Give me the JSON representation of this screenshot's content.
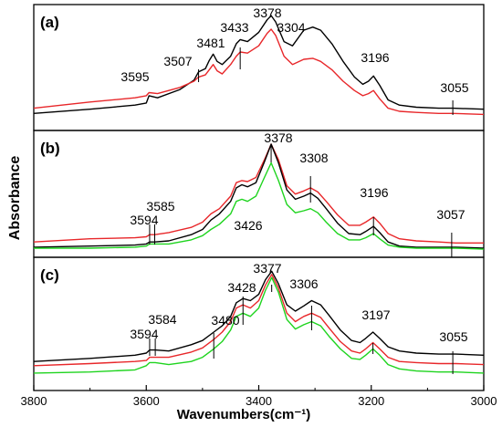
{
  "chart_data": {
    "type": "line",
    "xlabel": "Wavenumbers(cm⁻¹)",
    "ylabel": "Absorbance",
    "xlim": [
      3800,
      3000
    ],
    "x_reversed": true,
    "x_ticks": [
      3800,
      3600,
      3400,
      3200,
      3000
    ],
    "grid": false,
    "legend": "none",
    "panels": [
      {
        "label": "(a)",
        "annotations": [
          {
            "text": "3595",
            "x": 3595,
            "has_line": false
          },
          {
            "text": "3507",
            "x": 3507,
            "has_line": true
          },
          {
            "text": "3481",
            "x": 3481,
            "has_line": false
          },
          {
            "text": "3433",
            "x": 3433,
            "has_line": true
          },
          {
            "text": "3378",
            "x": 3378,
            "has_line": false
          },
          {
            "text": "3304",
            "x": 3304,
            "has_line": false
          },
          {
            "text": "3196",
            "x": 3196,
            "has_line": false
          },
          {
            "text": "3055",
            "x": 3055,
            "has_line": true
          }
        ],
        "series": [
          {
            "color": "#000000",
            "x": [
              3800,
              3700,
              3620,
              3600,
              3595,
              3580,
              3540,
              3515,
              3507,
              3495,
              3488,
              3481,
              3474,
              3465,
              3450,
              3440,
              3433,
              3420,
              3400,
              3385,
              3378,
              3370,
              3355,
              3340,
              3320,
              3304,
              3290,
              3270,
              3250,
              3230,
              3215,
              3205,
              3196,
              3185,
              3170,
              3150,
              3120,
              3080,
              3055,
              3000
            ],
            "y": [
              0.05,
              0.09,
              0.13,
              0.15,
              0.22,
              0.2,
              0.28,
              0.37,
              0.45,
              0.48,
              0.56,
              0.62,
              0.55,
              0.52,
              0.6,
              0.72,
              0.76,
              0.74,
              0.83,
              0.95,
              0.99,
              0.93,
              0.74,
              0.7,
              0.85,
              0.88,
              0.85,
              0.72,
              0.55,
              0.4,
              0.33,
              0.36,
              0.41,
              0.32,
              0.18,
              0.13,
              0.11,
              0.1,
              0.1,
              0.09
            ]
          },
          {
            "color": "#e8272a",
            "x": [
              3800,
              3700,
              3620,
              3600,
              3595,
              3580,
              3540,
              3515,
              3507,
              3495,
              3488,
              3481,
              3474,
              3465,
              3450,
              3440,
              3433,
              3420,
              3400,
              3385,
              3378,
              3370,
              3355,
              3340,
              3320,
              3304,
              3290,
              3270,
              3250,
              3230,
              3215,
              3205,
              3196,
              3185,
              3170,
              3150,
              3120,
              3080,
              3055,
              3000
            ],
            "y": [
              0.1,
              0.16,
              0.2,
              0.22,
              0.25,
              0.24,
              0.3,
              0.36,
              0.4,
              0.42,
              0.47,
              0.52,
              0.46,
              0.43,
              0.52,
              0.6,
              0.64,
              0.63,
              0.7,
              0.82,
              0.86,
              0.8,
              0.6,
              0.52,
              0.57,
              0.58,
              0.55,
              0.47,
              0.36,
              0.27,
              0.22,
              0.24,
              0.27,
              0.19,
              0.1,
              0.07,
              0.06,
              0.05,
              0.05,
              0.04
            ]
          }
        ]
      },
      {
        "label": "(b)",
        "annotations": [
          {
            "text": "3594",
            "x": 3594,
            "has_line": true
          },
          {
            "text": "3585",
            "x": 3585,
            "has_line": true
          },
          {
            "text": "3426",
            "x": 3426,
            "has_line": false
          },
          {
            "text": "3378",
            "x": 3378,
            "has_line": true
          },
          {
            "text": "3308",
            "x": 3308,
            "has_line": true
          },
          {
            "text": "3196",
            "x": 3196,
            "has_line": true
          },
          {
            "text": "3057",
            "x": 3057,
            "has_line": true
          }
        ],
        "series": [
          {
            "color": "#e8272a",
            "x": [
              3800,
              3700,
              3620,
              3600,
              3594,
              3585,
              3560,
              3520,
              3500,
              3485,
              3470,
              3450,
              3440,
              3430,
              3420,
              3405,
              3390,
              3378,
              3365,
              3350,
              3335,
              3320,
              3308,
              3295,
              3280,
              3260,
              3240,
              3220,
              3210,
              3196,
              3185,
              3170,
              3150,
              3120,
              3080,
              3050,
              3000
            ],
            "y": [
              0.06,
              0.09,
              0.1,
              0.11,
              0.13,
              0.13,
              0.15,
              0.2,
              0.25,
              0.33,
              0.38,
              0.5,
              0.63,
              0.65,
              0.64,
              0.68,
              0.85,
              1.0,
              0.85,
              0.6,
              0.52,
              0.55,
              0.58,
              0.54,
              0.45,
              0.32,
              0.22,
              0.22,
              0.25,
              0.3,
              0.24,
              0.14,
              0.09,
              0.07,
              0.06,
              0.05,
              0.05
            ]
          },
          {
            "color": "#000000",
            "x": [
              3800,
              3700,
              3620,
              3600,
              3594,
              3585,
              3560,
              3520,
              3500,
              3485,
              3470,
              3450,
              3440,
              3430,
              3420,
              3405,
              3390,
              3378,
              3365,
              3350,
              3335,
              3320,
              3308,
              3295,
              3280,
              3260,
              3240,
              3220,
              3210,
              3196,
              3185,
              3170,
              3150,
              3120,
              3080,
              3050,
              3000
            ],
            "y": [
              0.01,
              0.02,
              0.03,
              0.04,
              0.06,
              0.06,
              0.07,
              0.13,
              0.18,
              0.27,
              0.33,
              0.45,
              0.58,
              0.61,
              0.59,
              0.63,
              0.83,
              1.0,
              0.82,
              0.56,
              0.47,
              0.5,
              0.53,
              0.48,
              0.38,
              0.24,
              0.14,
              0.13,
              0.16,
              0.21,
              0.15,
              0.06,
              0.02,
              0.01,
              0.01,
              0.01,
              0.0
            ]
          },
          {
            "color": "#1ed41e",
            "x": [
              3800,
              3700,
              3620,
              3600,
              3594,
              3585,
              3560,
              3520,
              3500,
              3485,
              3470,
              3450,
              3440,
              3430,
              3420,
              3405,
              3390,
              3378,
              3365,
              3350,
              3335,
              3320,
              3308,
              3295,
              3280,
              3260,
              3240,
              3220,
              3210,
              3196,
              3185,
              3170,
              3150,
              3120,
              3080,
              3050,
              3000
            ],
            "y": [
              0.0,
              0.0,
              0.01,
              0.02,
              0.04,
              0.04,
              0.04,
              0.08,
              0.12,
              0.18,
              0.23,
              0.33,
              0.45,
              0.47,
              0.45,
              0.5,
              0.68,
              0.82,
              0.65,
              0.42,
              0.34,
              0.36,
              0.38,
              0.34,
              0.25,
              0.14,
              0.08,
              0.08,
              0.1,
              0.14,
              0.09,
              0.03,
              0.01,
              0.0,
              0.0,
              0.0,
              -0.01
            ]
          }
        ]
      },
      {
        "label": "(c)",
        "annotations": [
          {
            "text": "3594",
            "x": 3594,
            "has_line": true
          },
          {
            "text": "3584",
            "x": 3584,
            "has_line": true
          },
          {
            "text": "3480",
            "x": 3480,
            "has_line": true
          },
          {
            "text": "3428",
            "x": 3428,
            "has_line": true
          },
          {
            "text": "3377",
            "x": 3377,
            "has_line": true
          },
          {
            "text": "3306",
            "x": 3306,
            "has_line": true
          },
          {
            "text": "3197",
            "x": 3197,
            "has_line": true
          },
          {
            "text": "3055",
            "x": 3055,
            "has_line": true
          }
        ],
        "series": [
          {
            "color": "#000000",
            "x": [
              3800,
              3700,
              3620,
              3600,
              3594,
              3584,
              3560,
              3520,
              3500,
              3480,
              3465,
              3450,
              3440,
              3428,
              3415,
              3400,
              3388,
              3377,
              3365,
              3350,
              3335,
              3320,
              3306,
              3290,
              3275,
              3255,
              3235,
              3220,
              3210,
              3197,
              3185,
              3170,
              3150,
              3120,
              3080,
              3050,
              3000
            ],
            "y": [
              0.12,
              0.15,
              0.18,
              0.2,
              0.23,
              0.23,
              0.22,
              0.28,
              0.32,
              0.4,
              0.46,
              0.55,
              0.68,
              0.72,
              0.7,
              0.76,
              0.9,
              0.98,
              0.86,
              0.66,
              0.6,
              0.65,
              0.7,
              0.66,
              0.56,
              0.42,
              0.32,
              0.3,
              0.34,
              0.4,
              0.34,
              0.26,
              0.22,
              0.2,
              0.19,
              0.19,
              0.18
            ]
          },
          {
            "color": "#e8272a",
            "x": [
              3800,
              3700,
              3620,
              3600,
              3594,
              3584,
              3560,
              3520,
              3500,
              3480,
              3465,
              3450,
              3440,
              3428,
              3415,
              3400,
              3388,
              3377,
              3365,
              3350,
              3335,
              3320,
              3306,
              3290,
              3275,
              3255,
              3235,
              3220,
              3210,
              3197,
              3185,
              3170,
              3150,
              3120,
              3080,
              3050,
              3000
            ],
            "y": [
              0.08,
              0.1,
              0.12,
              0.13,
              0.16,
              0.16,
              0.16,
              0.21,
              0.25,
              0.33,
              0.4,
              0.5,
              0.63,
              0.66,
              0.63,
              0.7,
              0.85,
              0.95,
              0.82,
              0.58,
              0.5,
              0.55,
              0.58,
              0.54,
              0.44,
              0.31,
              0.22,
              0.2,
              0.24,
              0.3,
              0.24,
              0.16,
              0.12,
              0.11,
              0.1,
              0.1,
              0.09
            ]
          },
          {
            "color": "#1ed41e",
            "x": [
              3800,
              3700,
              3620,
              3600,
              3594,
              3584,
              3560,
              3520,
              3500,
              3480,
              3465,
              3450,
              3440,
              3428,
              3415,
              3400,
              3388,
              3377,
              3365,
              3350,
              3335,
              3320,
              3306,
              3290,
              3275,
              3255,
              3235,
              3220,
              3210,
              3197,
              3185,
              3170,
              3150,
              3120,
              3080,
              3050,
              3000
            ],
            "y": [
              0.01,
              0.02,
              0.04,
              0.08,
              0.11,
              0.11,
              0.09,
              0.12,
              0.16,
              0.24,
              0.31,
              0.42,
              0.55,
              0.58,
              0.55,
              0.63,
              0.8,
              0.92,
              0.78,
              0.52,
              0.43,
              0.47,
              0.5,
              0.46,
              0.36,
              0.24,
              0.15,
              0.14,
              0.18,
              0.24,
              0.18,
              0.09,
              0.05,
              0.03,
              0.02,
              0.02,
              0.01
            ]
          }
        ]
      }
    ]
  }
}
